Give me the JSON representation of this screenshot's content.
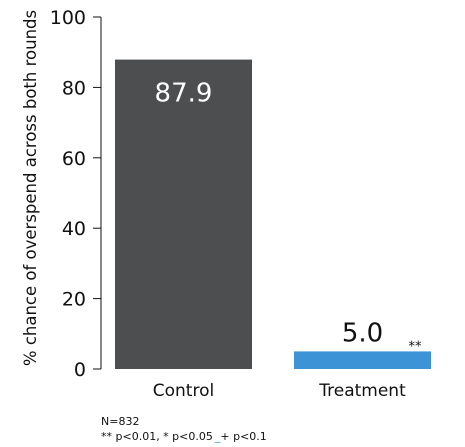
{
  "chart_data": {
    "type": "bar",
    "categories": [
      "Control",
      "Treatment"
    ],
    "values": [
      87.9,
      5.0
    ],
    "data_labels": [
      "87.9",
      "5.0"
    ],
    "significance": [
      "",
      "**"
    ],
    "ylabel": "% chance of overspend across both rounds",
    "xlabel": "",
    "ylim": [
      0,
      100
    ],
    "yticks": [
      0,
      20,
      40,
      60,
      80,
      100
    ],
    "ytick_labels": [
      "0",
      "20",
      "40",
      "60",
      "80",
      "100"
    ],
    "grid": false,
    "legend": "none",
    "bar_colors": [
      "#4d4e50",
      "#3c94d6"
    ],
    "data_label_colors": [
      "#ffffff",
      "#111111"
    ],
    "notes": {
      "n": "N=832",
      "sig_part1": "** p<0.01, * p<0.05",
      "sig_part2": "+ p<0.1"
    }
  }
}
